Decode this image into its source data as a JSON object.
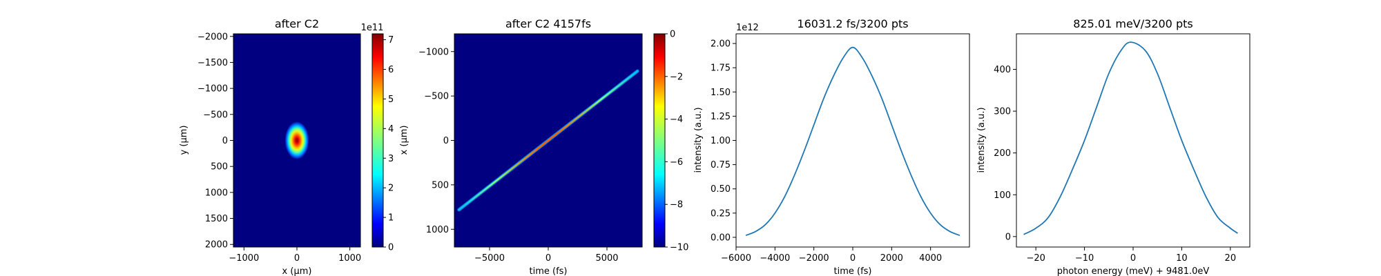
{
  "chart_data": [
    {
      "type": "heatmap",
      "title": "after C2",
      "xlabel": "x (μm)",
      "ylabel": "y (μm)",
      "xlim": [
        -1200,
        1200
      ],
      "ylim": [
        2050,
        -2050
      ],
      "xticks": [
        -1000,
        0,
        1000
      ],
      "xtick_labels": [
        "−1000",
        "0",
        "1000"
      ],
      "yticks": [
        -2000,
        -1500,
        -1000,
        -500,
        0,
        500,
        1000,
        1500,
        2000
      ],
      "ytick_labels": [
        "−2000",
        "−1500",
        "−1000",
        "−500",
        "0",
        "500",
        "1000",
        "1500",
        "2000"
      ],
      "beam": {
        "center": [
          0,
          0
        ],
        "sigma_x": 170,
        "sigma_y": 270,
        "peak": 7.2
      },
      "colormap": "jet",
      "colorbar": {
        "range": [
          0,
          7.2
        ],
        "ticks": [
          0,
          1,
          2,
          3,
          4,
          5,
          6,
          7
        ],
        "tick_labels": [
          "0",
          "1",
          "2",
          "3",
          "4",
          "5",
          "6",
          "7"
        ],
        "offset_label": "1e11",
        "label": ""
      }
    },
    {
      "type": "heatmap",
      "title": "after C2 4157fs",
      "xlabel": "time (fs)",
      "ylabel": "",
      "xlim": [
        -8000,
        8000
      ],
      "ylim": [
        1200,
        -1200
      ],
      "xticks": [
        -5000,
        0,
        5000
      ],
      "xtick_labels": [
        "−5000",
        "0",
        "5000"
      ],
      "yticks": [
        -1000,
        -500,
        0,
        500,
        1000
      ],
      "ytick_labels": [
        "−1000",
        "−500",
        "0",
        "500",
        "1000"
      ],
      "streak": {
        "start": [
          -7600,
          780
        ],
        "end": [
          7600,
          -780
        ]
      },
      "colormap": "jet",
      "colorbar": {
        "range": [
          -10,
          0
        ],
        "ticks": [
          0,
          -2,
          -4,
          -6,
          -8,
          -10
        ],
        "tick_labels": [
          "0",
          "−2",
          "−4",
          "−6",
          "−8",
          "−10"
        ],
        "label": "x (μm)"
      }
    },
    {
      "type": "line",
      "title": "16031.2 fs/3200 pts",
      "xlabel": "time (fs)",
      "ylabel": "intensity (a.u.)",
      "xlim": [
        -6000,
        6000
      ],
      "ylim": [
        -0.1,
        2.1
      ],
      "xticks": [
        -6000,
        -4000,
        -2000,
        0,
        2000,
        4000
      ],
      "xtick_labels": [
        "−6000",
        "−4000",
        "−2000",
        "0",
        "2000",
        "4000"
      ],
      "yticks": [
        0,
        0.25,
        0.5,
        0.75,
        1.0,
        1.25,
        1.5,
        1.75,
        2.0
      ],
      "ytick_labels": [
        "0.00",
        "0.25",
        "0.50",
        "0.75",
        "1.00",
        "1.25",
        "1.50",
        "1.75",
        "2.00"
      ],
      "offset_label": "1e12",
      "color": "#1f77b4",
      "series": [
        {
          "x": [
            -5500,
            -5000,
            -4500,
            -4000,
            -3500,
            -3000,
            -2500,
            -2000,
            -1500,
            -1000,
            -500,
            0,
            500,
            1000,
            1500,
            2000,
            2500,
            3000,
            3500,
            4000,
            4500,
            5000,
            5500
          ],
          "y": [
            0.02,
            0.06,
            0.13,
            0.25,
            0.42,
            0.64,
            0.89,
            1.16,
            1.43,
            1.66,
            1.85,
            1.96,
            1.85,
            1.66,
            1.43,
            1.16,
            0.89,
            0.64,
            0.42,
            0.25,
            0.13,
            0.06,
            0.02
          ]
        }
      ]
    },
    {
      "type": "line",
      "title": "825.01 meV/3200 pts",
      "xlabel": "photon energy (meV) + 9481.0eV",
      "ylabel": "intensity (a.u.)",
      "xlim": [
        -24,
        24
      ],
      "ylim": [
        -25,
        485
      ],
      "xticks": [
        -20,
        -10,
        0,
        10,
        20
      ],
      "xtick_labels": [
        "−20",
        "−10",
        "0",
        "10",
        "20"
      ],
      "yticks": [
        0,
        100,
        200,
        300,
        400
      ],
      "ytick_labels": [
        "0",
        "100",
        "200",
        "300",
        "400"
      ],
      "color": "#1f77b4",
      "series": [
        {
          "x": [
            -22.5,
            -20,
            -17.5,
            -15,
            -12.5,
            -10,
            -7.5,
            -5,
            -2.5,
            -0.5,
            2.5,
            5,
            7.5,
            10,
            12.5,
            15,
            17.5,
            20,
            21.5
          ],
          "y": [
            5,
            20,
            45,
            95,
            160,
            230,
            310,
            390,
            445,
            465,
            445,
            390,
            310,
            230,
            160,
            95,
            45,
            20,
            8
          ]
        }
      ]
    }
  ]
}
